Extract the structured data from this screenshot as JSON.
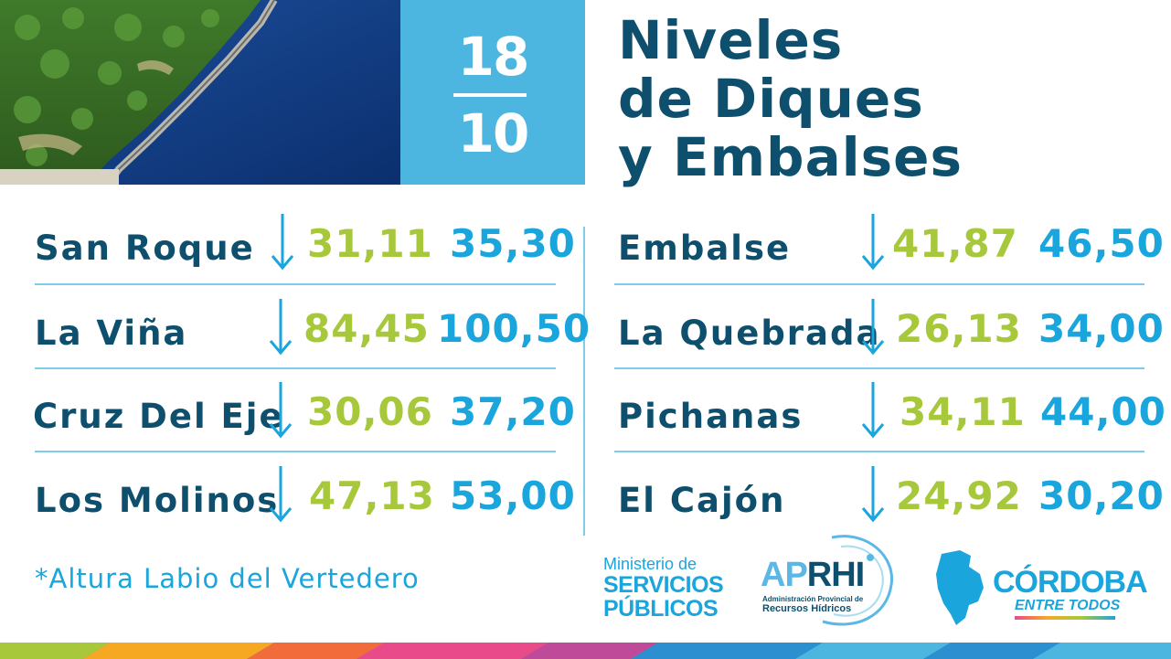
{
  "date": {
    "day": "18",
    "month": "10"
  },
  "title": {
    "line1": "Niveles",
    "line2": "de Diques",
    "line3": "y Embalses"
  },
  "left_rows": [
    {
      "name": "San Roque",
      "current": "31,11",
      "max": "35,30",
      "trend": "down"
    },
    {
      "name": "La Viña",
      "current": "84,45",
      "max": "100,50",
      "trend": "down"
    },
    {
      "name": "Cruz Del Eje",
      "current": "30,06",
      "max": "37,20",
      "trend": "down"
    },
    {
      "name": "Los Molinos",
      "current": "47,13",
      "max": "53,00",
      "trend": "down"
    }
  ],
  "right_rows": [
    {
      "name": "Embalse",
      "current": "41,87",
      "max": "46,50",
      "trend": "down"
    },
    {
      "name": "La Quebrada",
      "current": "26,13",
      "max": "34,00",
      "trend": "down"
    },
    {
      "name": "Pichanas",
      "current": "34,11",
      "max": "44,00",
      "trend": "down"
    },
    {
      "name": "El Cajón",
      "current": "24,92",
      "max": "30,20",
      "trend": "down"
    }
  ],
  "note": "*Altura Labio del Vertedero",
  "logos": {
    "ministerio": {
      "line1": "Ministerio de",
      "line2": "SERVICIOS",
      "line3": "PÚBLICOS"
    },
    "aprhi": {
      "prefix": "AP",
      "suffix": "RHI",
      "sub1": "Administración Provincial de",
      "sub2": "Recursos Hídricos"
    },
    "cordoba": {
      "word": "CÓRDOBA",
      "tag": "ENTRE TODOS"
    }
  },
  "colors": {
    "navy": "#0d4f6c",
    "green": "#a8c83c",
    "blue": "#1aa5dc",
    "date_bg": "#4cb6e0"
  }
}
